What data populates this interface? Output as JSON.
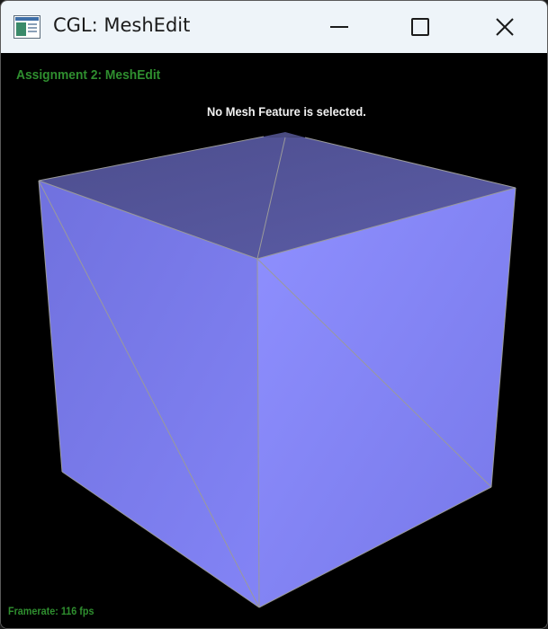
{
  "window": {
    "title": "CGL: MeshEdit"
  },
  "viewer": {
    "header": "Assignment 2: MeshEdit",
    "selection_status": "No Mesh Feature is selected.",
    "framerate_label": "Framerate:",
    "framerate_value": "116 fps"
  },
  "colors": {
    "background": "#000000",
    "hud_text": "#2f8f2f",
    "mesh_side_light": "#8b8cff",
    "mesh_side_left": "#7b7bf2",
    "mesh_top": "#55569a",
    "edge": "#9a9a9a"
  }
}
